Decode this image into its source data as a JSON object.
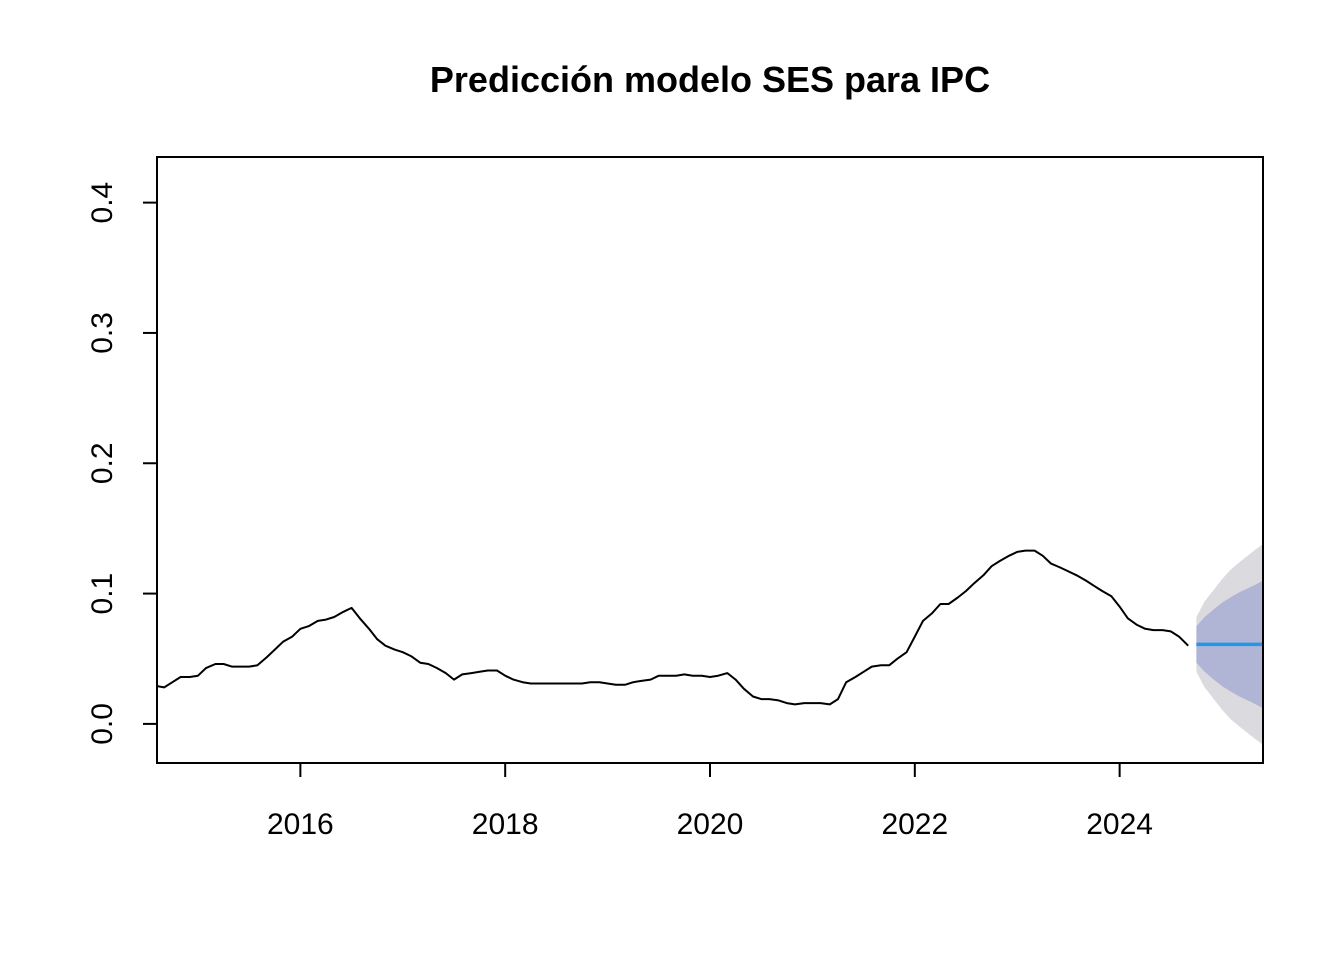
{
  "chart_data": {
    "type": "line",
    "title": "Predicción modelo SES para IPC",
    "xlabel": "",
    "ylabel": "",
    "xlim": [
      2014.6,
      2025.4
    ],
    "ylim": [
      -0.03,
      0.435
    ],
    "x_ticks": [
      2016,
      2018,
      2020,
      2022,
      2024
    ],
    "x_tick_labels": [
      "2016",
      "2018",
      "2020",
      "2022",
      "2024"
    ],
    "y_ticks": [
      0.0,
      0.1,
      0.2,
      0.3,
      0.4
    ],
    "y_tick_labels": [
      "0.0",
      "0.1",
      "0.2",
      "0.3",
      "0.4"
    ],
    "grid": false,
    "legend": "none",
    "series": [
      {
        "role": "observed",
        "color": "#000000",
        "x": [
          2014.6,
          2014.67,
          2014.75,
          2014.83,
          2014.92,
          2015.0,
          2015.08,
          2015.17,
          2015.25,
          2015.33,
          2015.42,
          2015.5,
          2015.58,
          2015.67,
          2015.75,
          2015.83,
          2015.92,
          2016.0,
          2016.08,
          2016.17,
          2016.25,
          2016.33,
          2016.42,
          2016.5,
          2016.58,
          2016.67,
          2016.75,
          2016.83,
          2016.92,
          2017.0,
          2017.08,
          2017.17,
          2017.25,
          2017.33,
          2017.42,
          2017.5,
          2017.58,
          2017.67,
          2017.75,
          2017.83,
          2017.92,
          2018.0,
          2018.08,
          2018.17,
          2018.25,
          2018.33,
          2018.42,
          2018.5,
          2018.58,
          2018.67,
          2018.75,
          2018.83,
          2018.92,
          2019.0,
          2019.08,
          2019.17,
          2019.25,
          2019.33,
          2019.42,
          2019.5,
          2019.58,
          2019.67,
          2019.75,
          2019.83,
          2019.92,
          2020.0,
          2020.08,
          2020.17,
          2020.25,
          2020.33,
          2020.42,
          2020.5,
          2020.58,
          2020.67,
          2020.75,
          2020.83,
          2020.92,
          2021.0,
          2021.08,
          2021.17,
          2021.25,
          2021.33,
          2021.42,
          2021.5,
          2021.58,
          2021.67,
          2021.75,
          2021.83,
          2021.92,
          2022.0,
          2022.08,
          2022.17,
          2022.25,
          2022.33,
          2022.42,
          2022.5,
          2022.58,
          2022.67,
          2022.75,
          2022.83,
          2022.92,
          2023.0,
          2023.08,
          2023.17,
          2023.25,
          2023.33,
          2023.42,
          2023.5,
          2023.58,
          2023.67,
          2023.75,
          2023.83,
          2023.92,
          2024.0,
          2024.08,
          2024.17,
          2024.25,
          2024.33,
          2024.42,
          2024.5,
          2024.58,
          2024.67
        ],
        "y": [
          0.029,
          0.028,
          0.032,
          0.036,
          0.036,
          0.037,
          0.043,
          0.046,
          0.046,
          0.044,
          0.044,
          0.044,
          0.045,
          0.051,
          0.057,
          0.063,
          0.067,
          0.073,
          0.075,
          0.079,
          0.08,
          0.082,
          0.086,
          0.089,
          0.081,
          0.073,
          0.065,
          0.06,
          0.057,
          0.055,
          0.052,
          0.047,
          0.046,
          0.043,
          0.039,
          0.034,
          0.038,
          0.039,
          0.04,
          0.041,
          0.041,
          0.037,
          0.034,
          0.032,
          0.031,
          0.031,
          0.031,
          0.031,
          0.031,
          0.031,
          0.031,
          0.032,
          0.032,
          0.031,
          0.03,
          0.03,
          0.032,
          0.033,
          0.034,
          0.037,
          0.037,
          0.037,
          0.038,
          0.037,
          0.037,
          0.036,
          0.037,
          0.039,
          0.034,
          0.027,
          0.021,
          0.019,
          0.019,
          0.018,
          0.016,
          0.015,
          0.016,
          0.016,
          0.016,
          0.015,
          0.019,
          0.032,
          0.036,
          0.04,
          0.044,
          0.045,
          0.045,
          0.05,
          0.055,
          0.067,
          0.079,
          0.085,
          0.092,
          0.092,
          0.097,
          0.102,
          0.108,
          0.114,
          0.121,
          0.125,
          0.129,
          0.132,
          0.133,
          0.133,
          0.129,
          0.123,
          0.12,
          0.117,
          0.114,
          0.11,
          0.106,
          0.102,
          0.098,
          0.09,
          0.081,
          0.076,
          0.073,
          0.072,
          0.072,
          0.071,
          0.067,
          0.06
        ]
      },
      {
        "role": "forecast",
        "color": "#2297E6",
        "x": [
          2024.75,
          2025.4
        ],
        "y": [
          0.061,
          0.061
        ]
      }
    ],
    "intervals": [
      {
        "role": "outer-band",
        "color": "#DBDBDF",
        "x": [
          2024.75,
          2024.83,
          2024.92,
          2025.0,
          2025.08,
          2025.17,
          2025.25,
          2025.33,
          2025.4
        ],
        "lower": [
          0.04,
          0.028,
          0.019,
          0.011,
          0.004,
          -0.002,
          -0.007,
          -0.012,
          -0.016
        ],
        "upper": [
          0.082,
          0.094,
          0.103,
          0.111,
          0.118,
          0.124,
          0.129,
          0.134,
          0.138
        ]
      },
      {
        "role": "inner-band",
        "color": "#B0B5D6",
        "x": [
          2024.75,
          2024.83,
          2024.92,
          2025.0,
          2025.08,
          2025.17,
          2025.25,
          2025.33,
          2025.4
        ],
        "lower": [
          0.047,
          0.04,
          0.034,
          0.029,
          0.025,
          0.021,
          0.018,
          0.015,
          0.012
        ],
        "upper": [
          0.075,
          0.082,
          0.088,
          0.093,
          0.097,
          0.101,
          0.104,
          0.107,
          0.11
        ]
      }
    ]
  }
}
